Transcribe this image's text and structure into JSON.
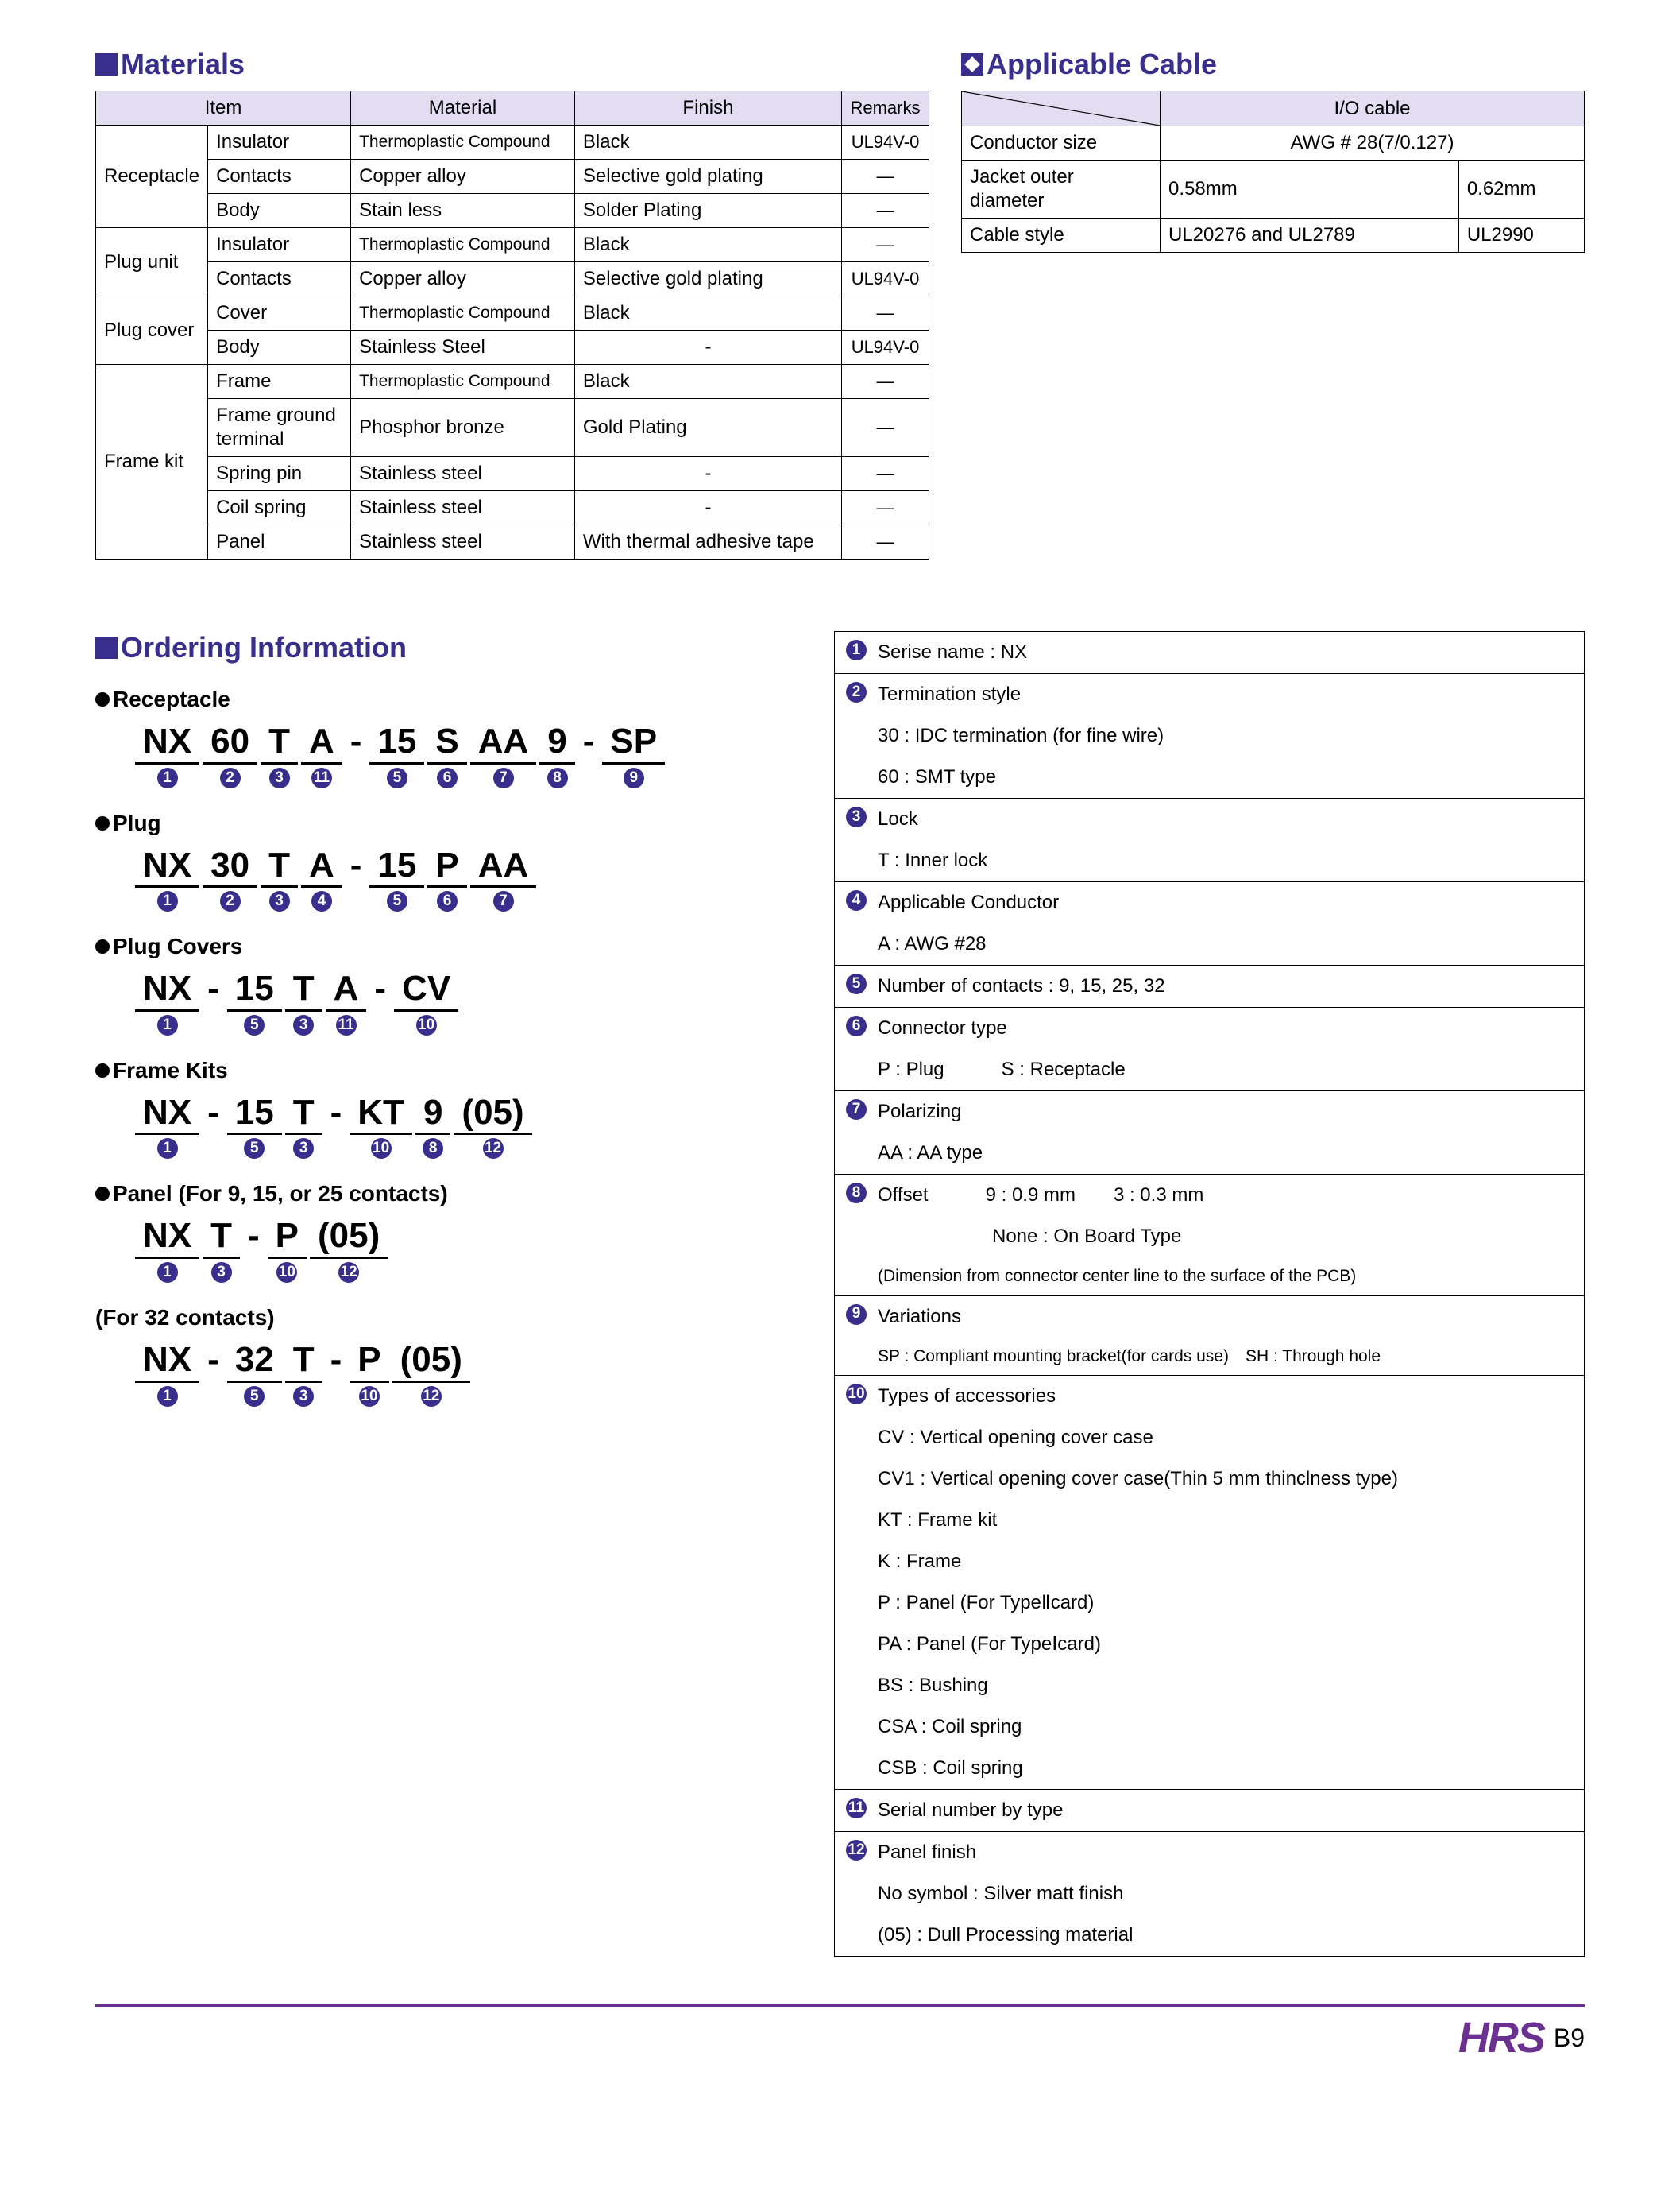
{
  "headings": {
    "materials": "Materials",
    "cable": "Applicable Cable",
    "ordering": "Ordering Information"
  },
  "materials_table": {
    "headers": [
      "Item",
      "Material",
      "Finish",
      "Remarks"
    ],
    "groups": [
      {
        "group": "Receptacle",
        "rows": [
          {
            "item": "Insulator",
            "material": "Thermoplastic Compound",
            "finish": "Black",
            "remarks": "UL94V-0"
          },
          {
            "item": "Contacts",
            "material": "Copper alloy",
            "finish": "Selective gold plating",
            "remarks": "—"
          },
          {
            "item": "Body",
            "material": "Stain less",
            "finish": "Solder Plating",
            "remarks": "—"
          }
        ]
      },
      {
        "group": "Plug unit",
        "rows": [
          {
            "item": "Insulator",
            "material": "Thermoplastic Compound",
            "finish": "Black",
            "remarks": "—"
          },
          {
            "item": "Contacts",
            "material": "Copper alloy",
            "finish": "Selective gold plating",
            "remarks": "UL94V-0"
          }
        ]
      },
      {
        "group": "Plug cover",
        "rows": [
          {
            "item": "Cover",
            "material": "Thermoplastic Compound",
            "finish": "Black",
            "remarks": "—"
          },
          {
            "item": "Body",
            "material": "Stainless Steel",
            "finish": "-",
            "remarks": "UL94V-0"
          }
        ]
      },
      {
        "group": "Frame kit",
        "rows": [
          {
            "item": "Frame",
            "material": "Thermoplastic Compound",
            "finish": "Black",
            "remarks": "—"
          },
          {
            "item": "Frame ground terminal",
            "material": "Phosphor bronze",
            "finish": "Gold Plating",
            "remarks": "—"
          },
          {
            "item": "Spring pin",
            "material": "Stainless steel",
            "finish": "-",
            "remarks": "—"
          },
          {
            "item": "Coil spring",
            "material": "Stainless steel",
            "finish": "-",
            "remarks": "—"
          },
          {
            "item": "Panel",
            "material": "Stainless steel",
            "finish": "With thermal adhesive tape",
            "remarks": "—"
          }
        ]
      }
    ]
  },
  "cable_table": {
    "io_header": "I/O cable",
    "rows": [
      {
        "label": "Conductor size",
        "v1": "AWG # 28(7/0.127)",
        "span": true
      },
      {
        "label": "Jacket outer diameter",
        "v1": "0.58mm",
        "v2": "0.62mm"
      },
      {
        "label": "Cable style",
        "v1": "UL20276 and UL2789",
        "v2": "UL2990"
      }
    ]
  },
  "ordering": {
    "subs": {
      "receptacle": "Receptacle",
      "plug": "Plug",
      "plugcovers": "Plug Covers",
      "framekits": "Frame Kits",
      "panel": "Panel (For 9, 15, or 25 contacts)",
      "for32": "(For 32 contacts)"
    },
    "pn": {
      "receptacle": [
        {
          "t": "NX",
          "n": "1"
        },
        {
          "t": "60",
          "n": "2"
        },
        {
          "t": "T",
          "n": "3"
        },
        {
          "t": "A",
          "n": "11"
        },
        {
          "sep": "-"
        },
        {
          "t": "15",
          "n": "5"
        },
        {
          "t": "S",
          "n": "6"
        },
        {
          "t": "AA",
          "n": "7"
        },
        {
          "t": "9",
          "n": "8"
        },
        {
          "sep": "-"
        },
        {
          "t": "SP",
          "n": "9"
        }
      ],
      "plug": [
        {
          "t": "NX",
          "n": "1"
        },
        {
          "t": "30",
          "n": "2"
        },
        {
          "t": "T",
          "n": "3"
        },
        {
          "t": "A",
          "n": "4"
        },
        {
          "sep": "-"
        },
        {
          "t": "15",
          "n": "5"
        },
        {
          "t": "P",
          "n": "6"
        },
        {
          "t": "AA",
          "n": "7"
        }
      ],
      "plugcovers": [
        {
          "t": "NX",
          "n": "1"
        },
        {
          "sep": "-"
        },
        {
          "t": "15",
          "n": "5"
        },
        {
          "t": "T",
          "n": "3"
        },
        {
          "t": "A",
          "n": "11"
        },
        {
          "sep": "-"
        },
        {
          "t": "CV",
          "n": "10"
        }
      ],
      "framekits": [
        {
          "t": "NX",
          "n": "1"
        },
        {
          "sep": "-"
        },
        {
          "t": "15",
          "n": "5"
        },
        {
          "t": "T",
          "n": "3"
        },
        {
          "sep": "-"
        },
        {
          "t": "KT",
          "n": "10"
        },
        {
          "t": "9",
          "n": "8"
        },
        {
          "t": "(05)",
          "n": "12"
        }
      ],
      "panel": [
        {
          "t": "NX",
          "n": "1"
        },
        {
          "t": "T",
          "n": "3"
        },
        {
          "sep": "-"
        },
        {
          "t": "P",
          "n": "10"
        },
        {
          "t": "(05)",
          "n": "12"
        }
      ],
      "for32": [
        {
          "t": "NX",
          "n": "1"
        },
        {
          "sep": "-"
        },
        {
          "t": "32",
          "n": "5"
        },
        {
          "t": "T",
          "n": "3"
        },
        {
          "sep": "-"
        },
        {
          "t": "P",
          "n": "10"
        },
        {
          "t": "(05)",
          "n": "12"
        }
      ]
    }
  },
  "legend": [
    {
      "n": "1",
      "lines": [
        "Serise name : NX"
      ]
    },
    {
      "n": "2",
      "lines": [
        "Termination style",
        "30 : IDC termination (for fine wire)",
        "60 : SMT type"
      ]
    },
    {
      "n": "3",
      "lines": [
        "Lock",
        "T : Inner lock"
      ]
    },
    {
      "n": "4",
      "lines": [
        "Applicable Conductor",
        "A : AWG  #28"
      ]
    },
    {
      "n": "5",
      "lines": [
        "Number of contacts : 9, 15, 25, 32"
      ]
    },
    {
      "n": "6",
      "lines": [
        "Connector type",
        "P : Plug   S : Receptacle"
      ]
    },
    {
      "n": "7",
      "lines": [
        "Polarizing",
        "AA : AA  type"
      ]
    },
    {
      "n": "8",
      "lines": [
        "Offset   9 : 0.9 mm  3 : 0.3 mm",
        "      None : On Board Type"
      ],
      "small": "(Dimension from connector center line to the surface of the PCB)"
    },
    {
      "n": "9",
      "lines": [
        "Variations"
      ],
      "small": "SP : Compliant mounting bracket(for cards use) SH : Through hole"
    },
    {
      "n": "10",
      "lines": [
        "Types of accessories",
        "CV : Vertical opening cover case",
        "CV1 : Vertical opening cover case(Thin 5 mm thinclness type)",
        "KT : Frame kit",
        "K : Frame",
        "P : Panel (For TypeⅡcard)",
        "PA : Panel (For TypeⅠcard)",
        "BS : Bushing",
        "CSA : Coil spring",
        "CSB : Coil spring"
      ]
    },
    {
      "n": "11",
      "lines": [
        "Serial number by type"
      ]
    },
    {
      "n": "12",
      "lines": [
        "Panel finish",
        "No symbol : Silver matt finish",
        "(05) : Dull Processing material"
      ]
    }
  ],
  "footer": {
    "logo": "HRS",
    "page": "B9"
  },
  "colors": {
    "brand": "#3a2e8c",
    "footer_purple": "#6a3191",
    "header_bg": "#e3ddf2"
  }
}
